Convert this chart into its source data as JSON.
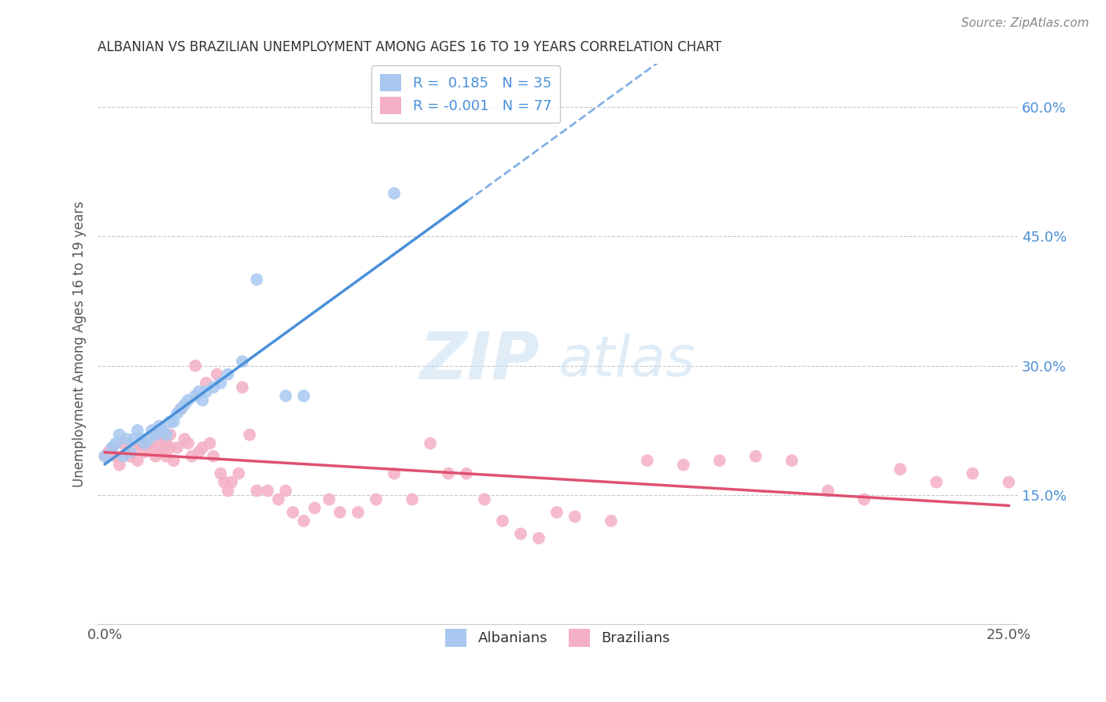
{
  "title": "ALBANIAN VS BRAZILIAN UNEMPLOYMENT AMONG AGES 16 TO 19 YEARS CORRELATION CHART",
  "source": "Source: ZipAtlas.com",
  "ylabel": "Unemployment Among Ages 16 to 19 years",
  "xmin": 0.0,
  "xmax": 0.25,
  "ymin": 0.0,
  "ymax": 0.65,
  "yticks": [
    0.15,
    0.3,
    0.45,
    0.6
  ],
  "ytick_labels": [
    "15.0%",
    "30.0%",
    "45.0%",
    "60.0%"
  ],
  "albanian_R": 0.185,
  "albanian_N": 35,
  "brazilian_R": -0.001,
  "brazilian_N": 77,
  "albanian_color": "#a8c8f0",
  "brazilian_color": "#f4b0c4",
  "trendline_albanian_color": "#4a90d9",
  "trendline_brazilian_color": "#e05070",
  "albanian_x": [
    0.0,
    0.002,
    0.003,
    0.004,
    0.005,
    0.006,
    0.007,
    0.008,
    0.009,
    0.01,
    0.011,
    0.012,
    0.013,
    0.014,
    0.015,
    0.016,
    0.017,
    0.018,
    0.019,
    0.02,
    0.021,
    0.022,
    0.023,
    0.025,
    0.026,
    0.027,
    0.028,
    0.03,
    0.032,
    0.034,
    0.038,
    0.042,
    0.05,
    0.055,
    0.08
  ],
  "albanian_y": [
    0.195,
    0.205,
    0.21,
    0.22,
    0.195,
    0.215,
    0.2,
    0.215,
    0.225,
    0.215,
    0.21,
    0.215,
    0.225,
    0.22,
    0.23,
    0.225,
    0.22,
    0.235,
    0.235,
    0.245,
    0.25,
    0.255,
    0.26,
    0.265,
    0.27,
    0.26,
    0.27,
    0.275,
    0.28,
    0.29,
    0.305,
    0.4,
    0.265,
    0.265,
    0.5
  ],
  "brazilian_x": [
    0.0,
    0.001,
    0.002,
    0.003,
    0.004,
    0.005,
    0.006,
    0.007,
    0.008,
    0.009,
    0.01,
    0.011,
    0.012,
    0.013,
    0.014,
    0.015,
    0.015,
    0.016,
    0.016,
    0.017,
    0.017,
    0.018,
    0.018,
    0.019,
    0.02,
    0.021,
    0.022,
    0.023,
    0.024,
    0.025,
    0.026,
    0.027,
    0.028,
    0.029,
    0.03,
    0.031,
    0.032,
    0.033,
    0.034,
    0.035,
    0.037,
    0.038,
    0.04,
    0.042,
    0.045,
    0.048,
    0.05,
    0.052,
    0.055,
    0.058,
    0.062,
    0.065,
    0.07,
    0.075,
    0.08,
    0.085,
    0.09,
    0.095,
    0.1,
    0.105,
    0.11,
    0.115,
    0.12,
    0.125,
    0.13,
    0.14,
    0.15,
    0.16,
    0.17,
    0.18,
    0.19,
    0.2,
    0.21,
    0.22,
    0.23,
    0.24,
    0.25
  ],
  "brazilian_y": [
    0.195,
    0.2,
    0.205,
    0.195,
    0.185,
    0.21,
    0.2,
    0.195,
    0.205,
    0.19,
    0.21,
    0.2,
    0.205,
    0.21,
    0.195,
    0.22,
    0.205,
    0.215,
    0.2,
    0.195,
    0.21,
    0.22,
    0.205,
    0.19,
    0.205,
    0.25,
    0.215,
    0.21,
    0.195,
    0.3,
    0.2,
    0.205,
    0.28,
    0.21,
    0.195,
    0.29,
    0.175,
    0.165,
    0.155,
    0.165,
    0.175,
    0.275,
    0.22,
    0.155,
    0.155,
    0.145,
    0.155,
    0.13,
    0.12,
    0.135,
    0.145,
    0.13,
    0.13,
    0.145,
    0.175,
    0.145,
    0.21,
    0.175,
    0.175,
    0.145,
    0.12,
    0.105,
    0.1,
    0.13,
    0.125,
    0.12,
    0.19,
    0.185,
    0.19,
    0.195,
    0.19,
    0.155,
    0.145,
    0.18,
    0.165,
    0.175,
    0.165
  ]
}
